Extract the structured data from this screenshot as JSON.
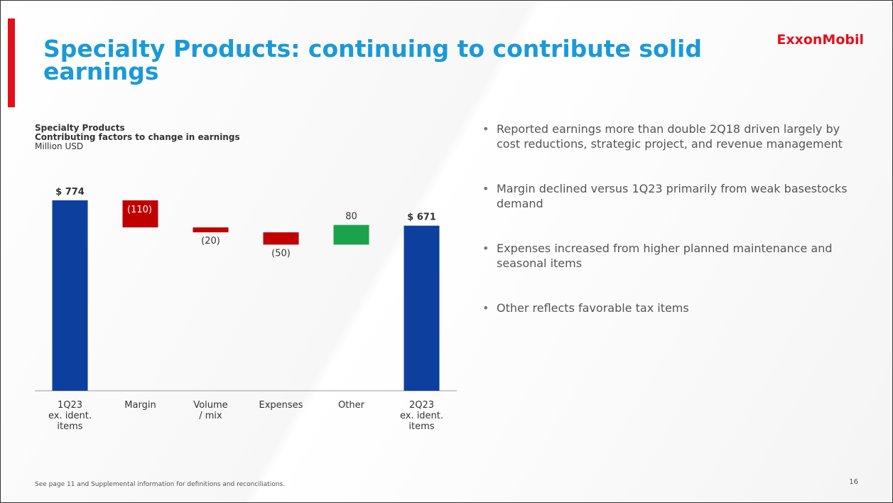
{
  "header": {
    "title_lines": [
      "Specialty Products: continuing to contribute solid",
      "earnings"
    ],
    "logo": "ExxonMobil"
  },
  "chart_data": {
    "type": "waterfall",
    "title": "Specialty Products",
    "subtitle": "Contributing factors to change in earnings",
    "unit": "Million USD",
    "categories": [
      [
        "1Q23",
        "ex. ident.",
        "items"
      ],
      [
        "Margin"
      ],
      [
        "Volume",
        "/ mix"
      ],
      [
        "Expenses"
      ],
      [
        "Other"
      ],
      [
        "2Q23",
        "ex. ident.",
        "items"
      ]
    ],
    "values": [
      774,
      -110,
      -20,
      -50,
      80,
      671
    ],
    "value_labels": [
      "$ 774",
      "(110)",
      "(20)",
      "(50)",
      "80",
      "$ 671"
    ],
    "colors": [
      "#0c3f9e",
      "#c00000",
      "#c00000",
      "#c00000",
      "#1aa34a",
      "#0c3f9e"
    ]
  },
  "bullets": [
    "Reported earnings more than double 2Q18 driven largely by cost reductions, strategic project, and revenue management",
    "Margin declined versus 1Q23 primarily from weak basestocks demand",
    "Expenses increased from higher planned maintenance and seasonal items",
    "Other reflects favorable tax items"
  ],
  "footer": {
    "note": "See page 11 and Supplemental information for definitions and reconciliations.",
    "page": "16"
  }
}
